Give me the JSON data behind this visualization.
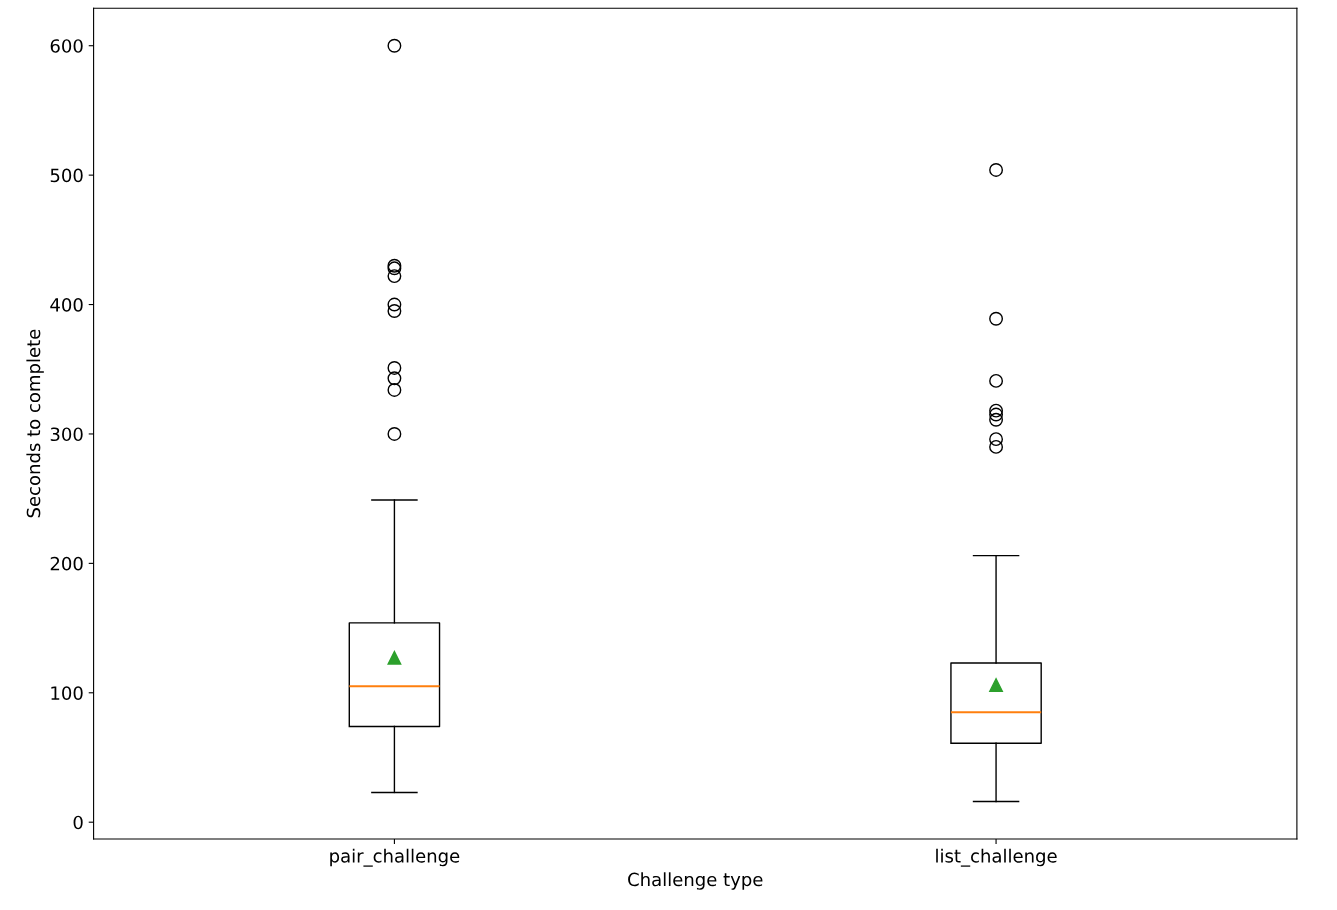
{
  "chart_data": {
    "type": "box",
    "xlabel": "Challenge type",
    "ylabel": "Seconds to complete",
    "categories": [
      "pair_challenge",
      "list_challenge"
    ],
    "boxes": [
      {
        "low": 23,
        "q1": 74,
        "median": 105,
        "q3": 154,
        "high": 249,
        "mean": 127,
        "outliers": [
          600,
          430,
          428,
          422,
          400,
          395,
          351,
          343,
          334,
          300
        ]
      },
      {
        "low": 16,
        "q1": 61,
        "median": 85,
        "q3": 123,
        "high": 206,
        "mean": 106,
        "outliers": [
          504,
          389,
          341,
          318,
          315,
          311,
          296,
          290
        ]
      }
    ],
    "ylim": [
      -13,
      629
    ],
    "yticks": [
      0,
      100,
      200,
      300,
      400,
      500,
      600
    ],
    "grid": false
  }
}
